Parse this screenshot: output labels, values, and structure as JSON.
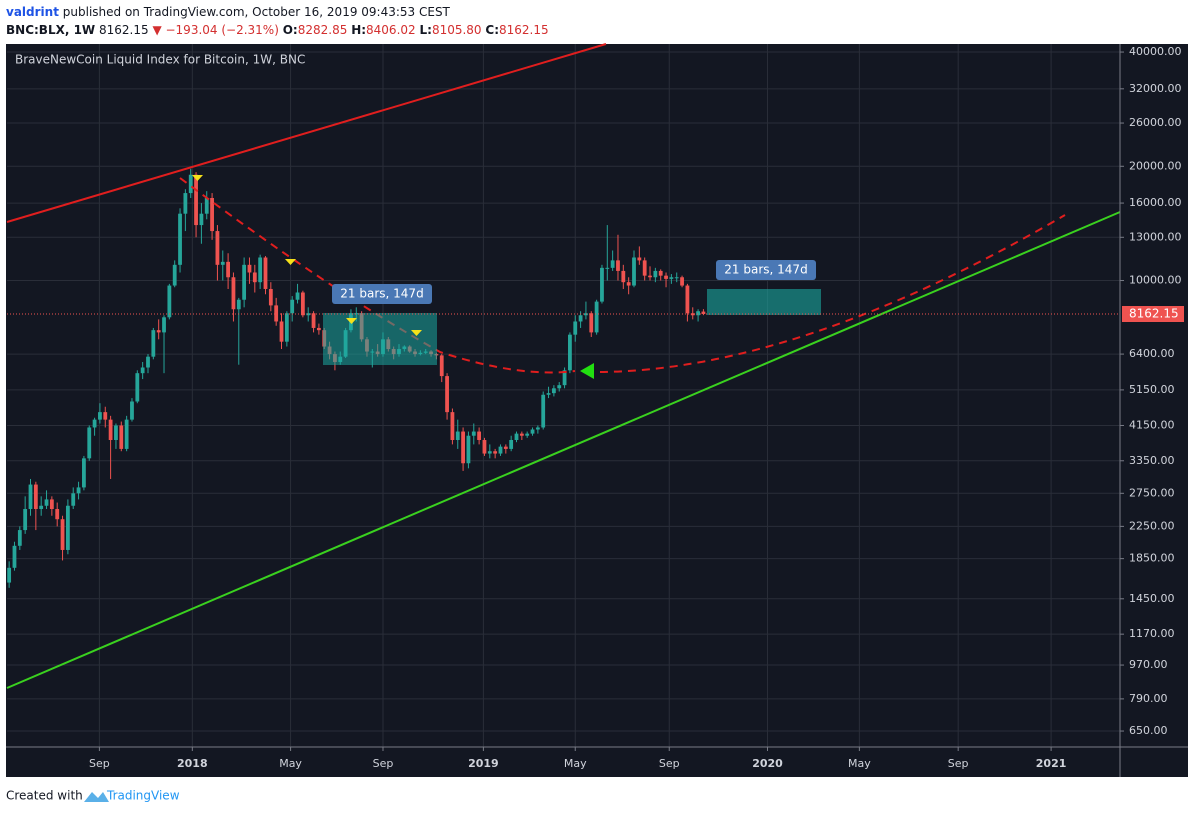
{
  "header": {
    "author": "valdrint",
    "published": "published on TradingView.com, October 16, 2019 09:43:53 CEST",
    "symbol": "BNC:BLX, 1W",
    "last": "8162.15",
    "change": "▼ −193.04 (−2.31%)",
    "ohlc": [
      {
        "label": "O:",
        "value": "8282.85"
      },
      {
        "label": "H:",
        "value": "8406.02"
      },
      {
        "label": "L:",
        "value": "8105.80"
      },
      {
        "label": "C:",
        "value": "8162.15"
      }
    ]
  },
  "chart_data": {
    "type": "candlestick",
    "title": "BraveNewCoin Liquid Index for Bitcoin, 1W, BNC",
    "up_color": "#26a69a",
    "down_color": "#ef5350",
    "log_scale": true,
    "grid": true,
    "xlim": [
      -0.4,
      208
    ],
    "ylim": [
      590,
      42000
    ],
    "xticks": [
      {
        "value": 16.9,
        "label": "Sep"
      },
      {
        "value": 34.3,
        "label": "2018"
      },
      {
        "value": 52.7,
        "label": "May"
      },
      {
        "value": 70.0,
        "label": "Sep"
      },
      {
        "value": 88.8,
        "label": "2019"
      },
      {
        "value": 106,
        "label": "May"
      },
      {
        "value": 123.6,
        "label": "Sep"
      },
      {
        "value": 142,
        "label": "2020"
      },
      {
        "value": 159.2,
        "label": "May"
      },
      {
        "value": 177.7,
        "label": "Sep"
      },
      {
        "value": 195.1,
        "label": "2021"
      }
    ],
    "yticks": [
      {
        "value": 650,
        "label": "650.00"
      },
      {
        "value": 790,
        "label": "790.00"
      },
      {
        "value": 970,
        "label": "970.00"
      },
      {
        "value": 1170,
        "label": "1170.00"
      },
      {
        "value": 1450,
        "label": "1450.00"
      },
      {
        "value": 1850,
        "label": "1850.00"
      },
      {
        "value": 2250,
        "label": "2250.00"
      },
      {
        "value": 2750,
        "label": "2750.00"
      },
      {
        "value": 3350,
        "label": "3350.00"
      },
      {
        "value": 4150,
        "label": "4150.00"
      },
      {
        "value": 5150,
        "label": "5150.00"
      },
      {
        "value": 6400,
        "label": "6400.00"
      },
      {
        "value": 10000,
        "label": "10000.00"
      },
      {
        "value": 13000,
        "label": "13000.00"
      },
      {
        "value": 16000,
        "label": "16000.00"
      },
      {
        "value": 20000,
        "label": "20000.00"
      },
      {
        "value": 26000,
        "label": "26000.00"
      },
      {
        "value": 32000,
        "label": "32000.00"
      },
      {
        "value": 40000,
        "label": "40000.00"
      }
    ],
    "last_price": {
      "value": 8162.15,
      "label": "8162.15"
    },
    "annotations": [
      "21 bars, 147d",
      "21 bars, 147d"
    ],
    "candles": [
      [
        1600,
        1820,
        1550,
        1750
      ],
      [
        1750,
        2050,
        1720,
        2000
      ],
      [
        2000,
        2250,
        1950,
        2200
      ],
      [
        2200,
        2700,
        2150,
        2500
      ],
      [
        2500,
        3000,
        2400,
        2900
      ],
      [
        2900,
        2950,
        2200,
        2500
      ],
      [
        2500,
        2700,
        2400,
        2550
      ],
      [
        2550,
        2800,
        2500,
        2650
      ],
      [
        2650,
        2700,
        2400,
        2500
      ],
      [
        2500,
        2600,
        2250,
        2350
      ],
      [
        2350,
        2400,
        1830,
        1950
      ],
      [
        1950,
        2650,
        1900,
        2550
      ],
      [
        2550,
        2850,
        2500,
        2750
      ],
      [
        2750,
        2950,
        2650,
        2850
      ],
      [
        2850,
        3450,
        2800,
        3400
      ],
      [
        3400,
        4150,
        3350,
        4100
      ],
      [
        4100,
        4350,
        3900,
        4300
      ],
      [
        4300,
        4750,
        4200,
        4500
      ],
      [
        4500,
        4650,
        4100,
        4300
      ],
      [
        4300,
        4400,
        3000,
        3800
      ],
      [
        3800,
        4200,
        3600,
        4150
      ],
      [
        4150,
        4250,
        3550,
        3600
      ],
      [
        3600,
        4400,
        3550,
        4300
      ],
      [
        4300,
        4900,
        4250,
        4800
      ],
      [
        4800,
        5800,
        4750,
        5700
      ],
      [
        5700,
        6100,
        5500,
        5900
      ],
      [
        5900,
        6400,
        5700,
        6300
      ],
      [
        6300,
        7500,
        6200,
        7400
      ],
      [
        7400,
        7900,
        7000,
        7300
      ],
      [
        7300,
        8100,
        5700,
        8000
      ],
      [
        8000,
        9800,
        7900,
        9700
      ],
      [
        9700,
        11300,
        9600,
        11000
      ],
      [
        11000,
        15500,
        10500,
        15000
      ],
      [
        15000,
        17400,
        13500,
        17000
      ],
      [
        17000,
        19700,
        16500,
        19000
      ],
      [
        19000,
        19300,
        13000,
        14000
      ],
      [
        14000,
        16000,
        12500,
        15000
      ],
      [
        15000,
        17200,
        14500,
        16500
      ],
      [
        16500,
        17000,
        12800,
        13500
      ],
      [
        13500,
        14000,
        10000,
        11000
      ],
      [
        11000,
        12000,
        10000,
        11200
      ],
      [
        11200,
        11800,
        9500,
        10200
      ],
      [
        10200,
        10500,
        7800,
        8400
      ],
      [
        8400,
        9000,
        6000,
        8900
      ],
      [
        8900,
        11500,
        8500,
        11000
      ],
      [
        11000,
        11500,
        9800,
        10500
      ],
      [
        10500,
        11000,
        9300,
        9900
      ],
      [
        9900,
        11700,
        9500,
        11500
      ],
      [
        11500,
        11600,
        9200,
        9500
      ],
      [
        9500,
        9900,
        8300,
        8600
      ],
      [
        8600,
        9000,
        7600,
        7800
      ],
      [
        7800,
        8200,
        6600,
        6900
      ],
      [
        6900,
        8300,
        6700,
        8200
      ],
      [
        8200,
        9100,
        7800,
        8900
      ],
      [
        8900,
        9800,
        8700,
        9300
      ],
      [
        9300,
        9400,
        8000,
        8100
      ],
      [
        8100,
        8500,
        7800,
        8200
      ],
      [
        8200,
        8300,
        7300,
        7500
      ],
      [
        7500,
        7700,
        7200,
        7400
      ],
      [
        7400,
        7500,
        6600,
        6700
      ],
      [
        6700,
        6900,
        6200,
        6400
      ],
      [
        6400,
        6500,
        5800,
        6100
      ],
      [
        6100,
        6500,
        6000,
        6300
      ],
      [
        6300,
        7500,
        6250,
        7400
      ],
      [
        7400,
        8400,
        7300,
        8200
      ],
      [
        8200,
        8500,
        7800,
        8200
      ],
      [
        8200,
        8300,
        6900,
        7000
      ],
      [
        7000,
        7100,
        6300,
        6500
      ],
      [
        6500,
        6600,
        5900,
        6500
      ],
      [
        6500,
        6800,
        6300,
        6400
      ],
      [
        6400,
        7300,
        6300,
        7000
      ],
      [
        7000,
        7100,
        6500,
        6600
      ],
      [
        6600,
        6700,
        6200,
        6400
      ],
      [
        6400,
        6800,
        6300,
        6600
      ],
      [
        6600,
        6750,
        6500,
        6700
      ],
      [
        6700,
        6750,
        6450,
        6500
      ],
      [
        6500,
        6600,
        6300,
        6400
      ],
      [
        6400,
        6550,
        6350,
        6450
      ],
      [
        6450,
        6600,
        6400,
        6500
      ],
      [
        6500,
        6550,
        6300,
        6400
      ],
      [
        6400,
        6450,
        6200,
        6350
      ],
      [
        6350,
        6400,
        5400,
        5600
      ],
      [
        5600,
        5700,
        4300,
        4500
      ],
      [
        4500,
        4600,
        3700,
        3800
      ],
      [
        3800,
        4300,
        3600,
        4000
      ],
      [
        4000,
        4100,
        3150,
        3300
      ],
      [
        3300,
        4000,
        3200,
        3900
      ],
      [
        3900,
        4200,
        3700,
        4000
      ],
      [
        4000,
        4100,
        3700,
        3800
      ],
      [
        3800,
        3850,
        3450,
        3500
      ],
      [
        3500,
        3700,
        3400,
        3550
      ],
      [
        3550,
        3600,
        3400,
        3500
      ],
      [
        3500,
        3700,
        3450,
        3650
      ],
      [
        3650,
        3700,
        3500,
        3600
      ],
      [
        3600,
        3900,
        3550,
        3800
      ],
      [
        3800,
        4000,
        3750,
        3950
      ],
      [
        3950,
        4000,
        3800,
        3900
      ],
      [
        3900,
        4000,
        3850,
        3950
      ],
      [
        3950,
        4100,
        3900,
        4050
      ],
      [
        4050,
        4150,
        3950,
        4100
      ],
      [
        4100,
        5100,
        4050,
        5000
      ],
      [
        5000,
        5250,
        4900,
        5050
      ],
      [
        5050,
        5300,
        4950,
        5200
      ],
      [
        5200,
        5400,
        5100,
        5300
      ],
      [
        5300,
        5900,
        5200,
        5800
      ],
      [
        5800,
        7300,
        5700,
        7200
      ],
      [
        7200,
        8100,
        6900,
        7800
      ],
      [
        7800,
        8300,
        7500,
        8100
      ],
      [
        8100,
        8800,
        7900,
        8200
      ],
      [
        8200,
        8300,
        7100,
        7300
      ],
      [
        7300,
        8900,
        7200,
        8800
      ],
      [
        8800,
        11000,
        8700,
        10800
      ],
      [
        10800,
        14000,
        10000,
        10800
      ],
      [
        10800,
        12000,
        10600,
        11300
      ],
      [
        11300,
        13200,
        10000,
        10600
      ],
      [
        10600,
        11000,
        9500,
        9900
      ],
      [
        9900,
        10200,
        9200,
        9700
      ],
      [
        9700,
        12000,
        9600,
        11500
      ],
      [
        11500,
        12300,
        11000,
        11300
      ],
      [
        11300,
        11500,
        10000,
        10300
      ],
      [
        10300,
        10900,
        10000,
        10200
      ],
      [
        10200,
        10800,
        9900,
        10600
      ],
      [
        10600,
        10700,
        10000,
        10300
      ],
      [
        10300,
        10500,
        9600,
        10100
      ],
      [
        10100,
        10400,
        9800,
        10200
      ],
      [
        10200,
        10500,
        9900,
        10200
      ],
      [
        10200,
        10300,
        9600,
        9700
      ],
      [
        9700,
        9800,
        7800,
        8200
      ],
      [
        8200,
        8500,
        7900,
        8100
      ],
      [
        8100,
        8400,
        7800,
        8300
      ],
      [
        8282.85,
        8406.02,
        8105.8,
        8162.15
      ]
    ]
  },
  "footer": {
    "text": "Created with",
    "brand": "TradingView"
  }
}
